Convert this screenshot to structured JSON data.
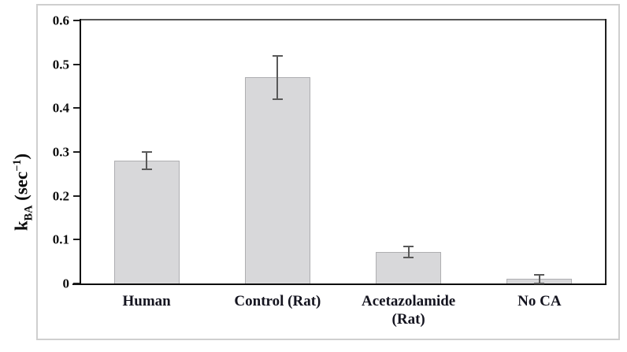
{
  "figure": {
    "background": "#ffffff",
    "border_color": "#cfcfcf"
  },
  "chart_data": {
    "type": "bar",
    "title": "",
    "categories": [
      "Human",
      "Control (Rat)",
      "Acetazolamide (Rat)",
      "No CA"
    ],
    "categories_display": [
      "Human",
      "Control (Rat)",
      "Acetazolamide\n(Rat)",
      "No CA"
    ],
    "values": [
      0.28,
      0.47,
      0.072,
      0.01
    ],
    "error_bars": [
      0.02,
      0.05,
      0.013,
      0.01
    ],
    "xlabel": "",
    "ylabel": "kBA (sec-1)",
    "ylabel_parts": {
      "symbol": "k",
      "subscript": "BA",
      "unit_open": " (sec",
      "unit_exponent": "−1",
      "unit_close": ")"
    },
    "ylim": [
      0,
      0.6
    ],
    "yticks": [
      0,
      0.1,
      0.2,
      0.3,
      0.4,
      0.5,
      0.6
    ],
    "ytick_labels": [
      "0",
      "0.1",
      "0.2",
      "0.3",
      "0.4",
      "0.5",
      "0.6"
    ],
    "grid": false,
    "legend": "none",
    "bar_fill": "#d8d8da",
    "bar_border": "#aeaeb1",
    "error_color": "#595959",
    "axis_color": "#0d0d0d"
  }
}
